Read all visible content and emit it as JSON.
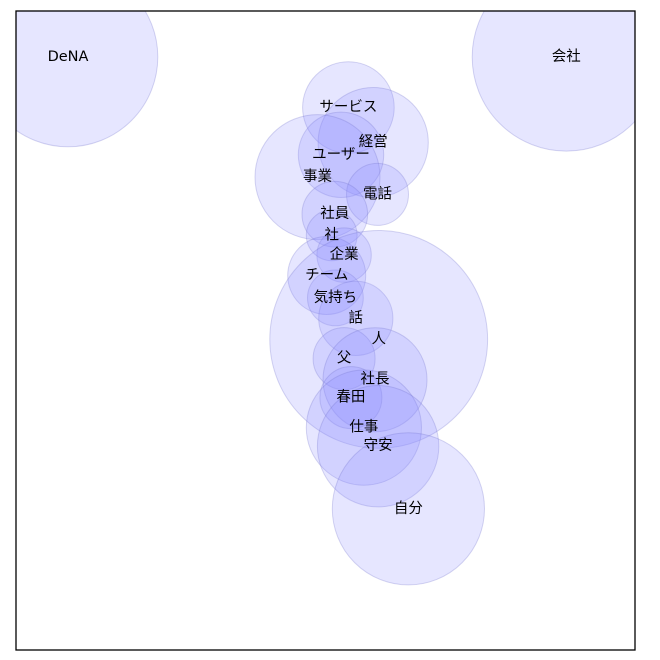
{
  "chart_data": {
    "type": "scatter",
    "title": "",
    "xlabel": "",
    "ylabel": "",
    "xlim": [
      0,
      100
    ],
    "ylim": [
      0,
      100
    ],
    "grid": false,
    "colors": {
      "fill": "#8c8cff",
      "stroke": "#7070c8"
    },
    "points": [
      {
        "label": "DeNA",
        "x": 8.4,
        "y": 92.8,
        "r": 14.5
      },
      {
        "label": "会社",
        "x": 88.9,
        "y": 92.8,
        "r": 15.2
      },
      {
        "label": "サービス",
        "x": 53.7,
        "y": 84.9,
        "r": 7.4
      },
      {
        "label": "経営",
        "x": 57.7,
        "y": 79.4,
        "r": 8.9
      },
      {
        "label": "ユーザー",
        "x": 52.5,
        "y": 77.5,
        "r": 6.9
      },
      {
        "label": "事業",
        "x": 48.7,
        "y": 74.0,
        "r": 10.1
      },
      {
        "label": "電話",
        "x": 58.4,
        "y": 71.3,
        "r": 5.0
      },
      {
        "label": "社員",
        "x": 51.5,
        "y": 68.2,
        "r": 5.3
      },
      {
        "label": "社",
        "x": 51.0,
        "y": 64.9,
        "r": 4.1
      },
      {
        "label": "企業",
        "x": 53.0,
        "y": 61.8,
        "r": 4.4
      },
      {
        "label": "チーム",
        "x": 50.2,
        "y": 58.6,
        "r": 6.3
      },
      {
        "label": "気持ち",
        "x": 51.6,
        "y": 55.1,
        "r": 4.5
      },
      {
        "label": "話",
        "x": 54.9,
        "y": 51.9,
        "r": 6.0
      },
      {
        "label": "人",
        "x": 58.6,
        "y": 48.6,
        "r": 17.6
      },
      {
        "label": "父",
        "x": 53.0,
        "y": 45.6,
        "r": 5.0
      },
      {
        "label": "社長",
        "x": 58.0,
        "y": 42.3,
        "r": 8.4
      },
      {
        "label": "春田",
        "x": 54.1,
        "y": 39.5,
        "r": 5.0
      },
      {
        "label": "仕事",
        "x": 56.2,
        "y": 34.8,
        "r": 9.3
      },
      {
        "label": "守安",
        "x": 58.5,
        "y": 31.9,
        "r": 9.8
      },
      {
        "label": "自分",
        "x": 63.4,
        "y": 22.1,
        "r": 12.3
      }
    ]
  }
}
